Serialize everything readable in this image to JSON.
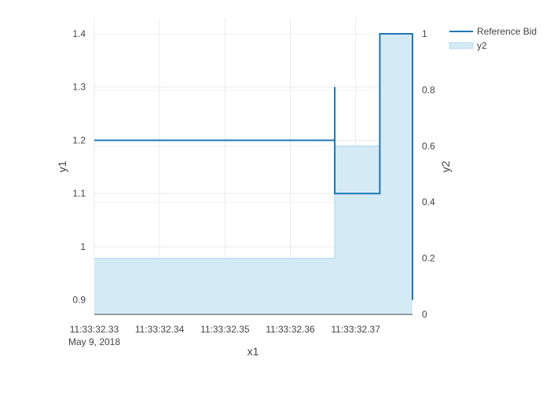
{
  "chart_data": {
    "type": "line",
    "title": "",
    "xlabel": "x1",
    "ylabel": "y1",
    "y2label": "y2",
    "x_ticks": [
      "11:33:32.33",
      "11:33:32.34",
      "11:33:32.35",
      "11:33:32.36",
      "11:33:32.37"
    ],
    "x_tick_values": [
      11.33,
      11.34,
      11.35,
      11.36,
      11.37
    ],
    "x_date_label": "May 9, 2018",
    "xlim": [
      11.33,
      11.3787
    ],
    "y_ticks": [
      "0.9",
      "1",
      "1.1",
      "1.2",
      "1.3",
      "1.4"
    ],
    "y_tick_values": [
      0.9,
      1.0,
      1.1,
      1.2,
      1.3,
      1.4
    ],
    "ylim": [
      0.873,
      1.4
    ],
    "y2_ticks": [
      "0",
      "0.2",
      "0.4",
      "0.6",
      "0.8",
      "1"
    ],
    "y2_tick_values": [
      0,
      0.2,
      0.4,
      0.6,
      0.8,
      1.0
    ],
    "y2lim": [
      0,
      1.0
    ],
    "grid": true,
    "legend_position": "top-right",
    "series": [
      {
        "name": "Reference Bid",
        "axis": "y1",
        "kind": "step-line",
        "color": "#1f77b4",
        "x": [
          11.33,
          11.3668,
          11.3668,
          11.3668,
          11.3737,
          11.3737,
          11.3787,
          11.3787
        ],
        "y": [
          1.2,
          1.2,
          1.3,
          1.1,
          1.1,
          1.4,
          1.4,
          0.9
        ]
      },
      {
        "name": "y2",
        "axis": "y2",
        "kind": "step-area",
        "color": "#1f77b4",
        "fill": "#d4eaf5",
        "line": "#bfdff0",
        "x": [
          11.33,
          11.3668,
          11.3668,
          11.3737,
          11.3737,
          11.3787
        ],
        "y": [
          0.2,
          0.2,
          0.6,
          0.6,
          1.0,
          1.0
        ]
      }
    ]
  }
}
